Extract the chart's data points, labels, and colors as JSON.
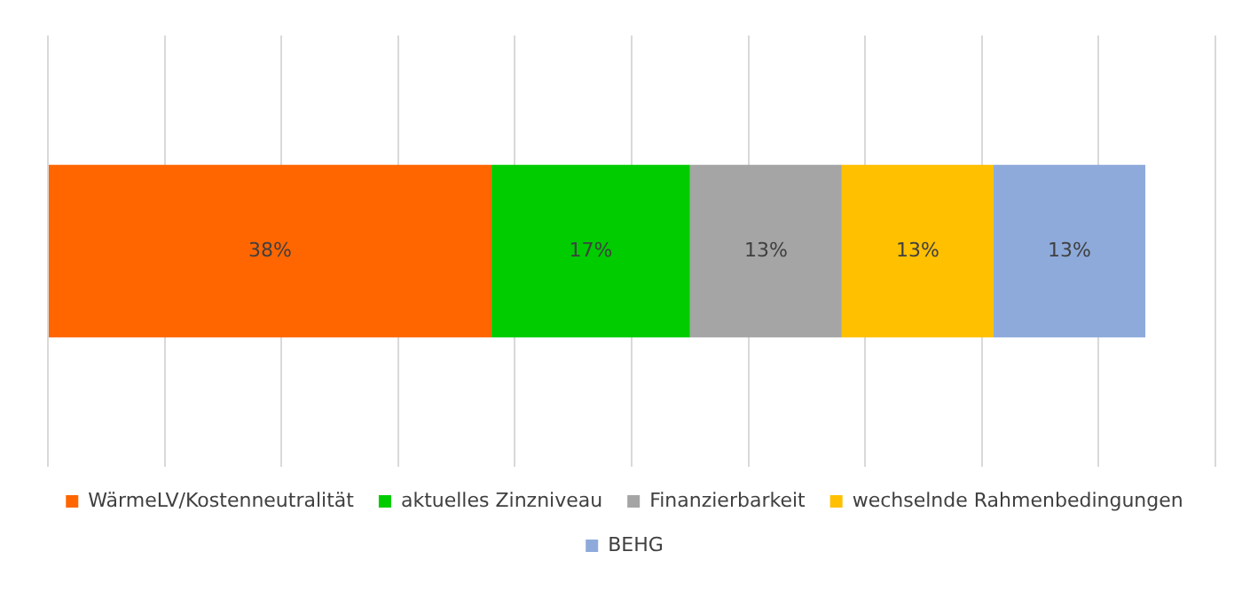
{
  "chart_data": {
    "type": "bar",
    "orientation": "horizontal",
    "stacked": true,
    "categories": [
      null
    ],
    "series": [
      {
        "name": "WärmeLV/Kostenneutralität",
        "color": "#ff6600",
        "values": [
          38
        ],
        "value_labels": [
          "38%"
        ]
      },
      {
        "name": "aktuelles Zinzniveau",
        "color": "#00cc00",
        "values": [
          17
        ],
        "value_labels": [
          "17%"
        ]
      },
      {
        "name": "Finanzierbarkeit",
        "color": "#a5a5a5",
        "values": [
          13
        ],
        "value_labels": [
          "13%"
        ]
      },
      {
        "name": "wechselnde Rahmenbedingungen",
        "color": "#ffc000",
        "values": [
          13
        ],
        "value_labels": [
          "13%"
        ]
      },
      {
        "name": "BEHG",
        "color": "#8eaadb",
        "values": [
          13
        ],
        "value_labels": [
          "13%"
        ]
      }
    ],
    "xlim": [
      0,
      100
    ],
    "xticks": [
      {
        "value": 0,
        "label": null
      },
      {
        "value": 10,
        "label": null
      },
      {
        "value": 20,
        "label": null
      },
      {
        "value": 30,
        "label": null
      },
      {
        "value": 40,
        "label": null
      },
      {
        "value": 50,
        "label": null
      },
      {
        "value": 60,
        "label": null
      },
      {
        "value": 70,
        "label": null
      },
      {
        "value": 80,
        "label": null
      },
      {
        "value": 90,
        "label": null
      },
      {
        "value": 100,
        "label": null
      }
    ],
    "tick_labels": false,
    "grid": "x",
    "legend": "bottom"
  }
}
